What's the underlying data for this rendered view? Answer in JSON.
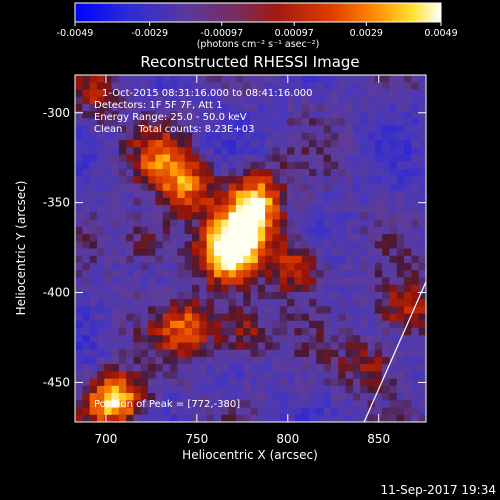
{
  "chart_data": {
    "type": "heatmap",
    "title": "Reconstructed RHESSI Image",
    "xlabel": "Heliocentric X (arcsec)",
    "ylabel": "Heliocentric Y (arcsec)",
    "xlim": [
      683,
      876
    ],
    "ylim": [
      -472,
      -279
    ],
    "x_ticks": [
      700,
      750,
      800,
      850
    ],
    "y_ticks": [
      -300,
      -350,
      -400,
      -450
    ],
    "colorbar": {
      "min": -0.0049,
      "max": 0.0049,
      "tick_values": [
        -0.0049,
        -0.0029,
        -0.00097,
        0.00097,
        0.0029,
        0.0049
      ],
      "tick_labels": [
        "-0.0049",
        "-0.0029",
        "-0.00097",
        "0.00097",
        "0.0029",
        "0.0049"
      ],
      "units_label": "(photons cm⁻² s⁻¹ asec⁻²)",
      "colors": [
        "#0000ff",
        "#3b2aa8",
        "#6a3a8a",
        "#8b2c2c",
        "#c81e00",
        "#ff5a00",
        "#ffb400",
        "#ffff40",
        "#ffffff"
      ]
    },
    "sources": [
      {
        "x": 768,
        "y": -378,
        "peak": 1.0
      },
      {
        "x": 778,
        "y": -360,
        "peak": 0.7
      },
      {
        "x": 783,
        "y": -345,
        "peak": 0.55
      },
      {
        "x": 745,
        "y": -342,
        "peak": 0.6
      },
      {
        "x": 730,
        "y": -325,
        "peak": 0.45
      },
      {
        "x": 805,
        "y": -385,
        "peak": 0.55
      },
      {
        "x": 745,
        "y": -420,
        "peak": 0.55
      },
      {
        "x": 775,
        "y": -422,
        "peak": 0.45
      },
      {
        "x": 725,
        "y": -372,
        "peak": 0.4
      },
      {
        "x": 705,
        "y": -460,
        "peak": 0.85
      },
      {
        "x": 865,
        "y": -410,
        "peak": 0.5
      },
      {
        "x": 845,
        "y": -440,
        "peak": 0.4
      },
      {
        "x": 693,
        "y": -290,
        "peak": 0.35
      }
    ],
    "limb_line": [
      [
        876,
        -394
      ],
      [
        842,
        -472
      ]
    ],
    "annotations": {
      "time_range": "1-Oct-2015 08:31:16.000 to 08:41:16.000",
      "detectors": "Detectors: 1F 5F 7F, Att 1",
      "energy_range": "Energy Range: 25.0 - 50.0 keV",
      "method": "Clean     Total counts: 8.23E+03",
      "peak_position": "Position of Peak = [772,-380]"
    }
  },
  "footer": {
    "timestamp": "11-Sep-2017 19:34"
  }
}
